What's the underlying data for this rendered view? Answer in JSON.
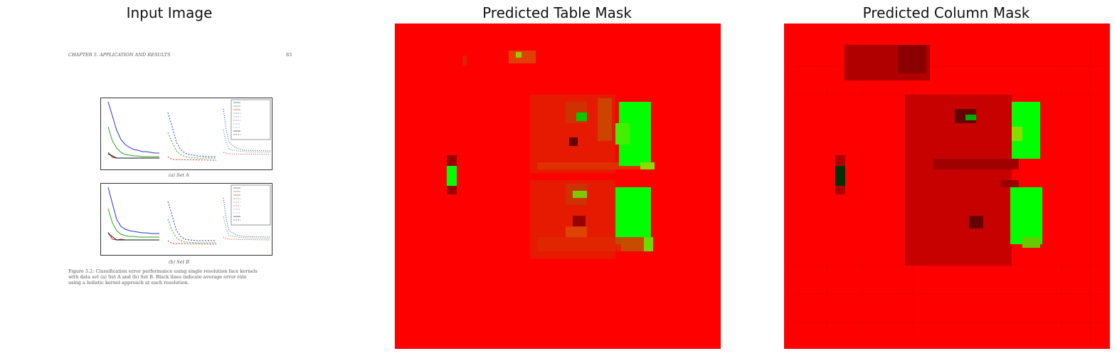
{
  "panels": {
    "input": {
      "title": "Input Image"
    },
    "table_mask": {
      "title": "Predicted Table Mask"
    },
    "column_mask": {
      "title": "Predicted Column Mask"
    }
  },
  "document": {
    "header_left": "CHAPTER 5.  APPLICATION AND RESULTS",
    "header_right": "83",
    "caption_a": "(a) Set A",
    "caption_b": "(b) Set B",
    "figure_caption_1": "Figure 5.2: Classification error performance using single resolution face kernels",
    "figure_caption_2": "with data set (a) Set A and (b) Set B. Black lines indicate average error rate",
    "figure_caption_3": "using a holistic kernel approach at each resolution."
  },
  "colors": {
    "mask_bg": "#ff0000",
    "mask_hit": "#00ff00",
    "mask_dark": "#990000",
    "mask_mid": "#cc3300"
  }
}
